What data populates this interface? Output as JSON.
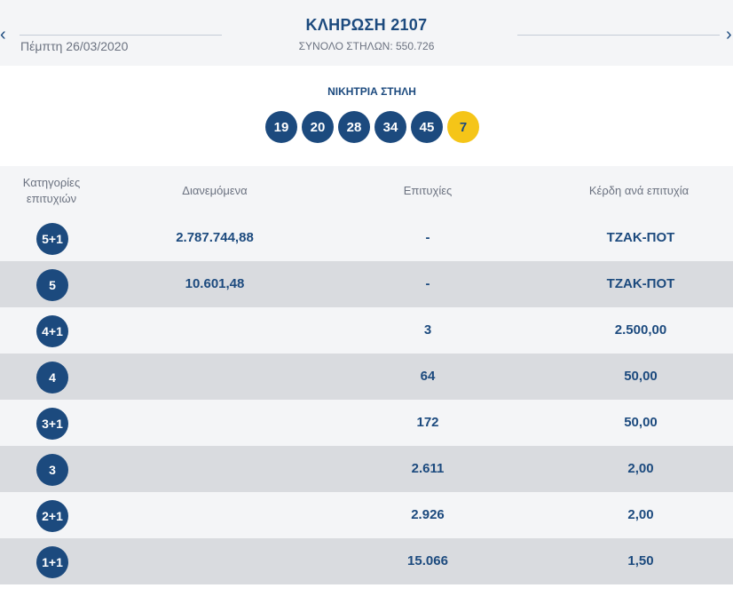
{
  "header": {
    "prev_icon": "‹",
    "next_icon": "›",
    "date": "Πέμπτη 26/03/2020",
    "title": "ΚΛΗΡΩΣΗ 2107",
    "total_columns": "ΣΥΝΟΛΟ ΣΤΗΛΩΝ: 550.726"
  },
  "winning": {
    "label": "ΝΙΚΗΤΡΙΑ ΣΤΗΛΗ",
    "numbers": [
      "19",
      "20",
      "28",
      "34",
      "45"
    ],
    "bonus": "7",
    "colors": {
      "main": "#1c4a7e",
      "bonus": "#f5c518"
    }
  },
  "table": {
    "headers": {
      "category_line1": "Κατηγορίες",
      "category_line2": "επιτυχιών",
      "distributed": "Διανεμόμενα",
      "wins": "Επιτυχίες",
      "prize": "Κέρδη ανά επιτυχία"
    },
    "rows": [
      {
        "category": "5+1",
        "distributed": "2.787.744,88",
        "wins": "-",
        "prize": "ΤΖΑΚ-ΠΟΤ"
      },
      {
        "category": "5",
        "distributed": "10.601,48",
        "wins": "-",
        "prize": "ΤΖΑΚ-ΠΟΤ"
      },
      {
        "category": "4+1",
        "distributed": "",
        "wins": "3",
        "prize": "2.500,00"
      },
      {
        "category": "4",
        "distributed": "",
        "wins": "64",
        "prize": "50,00"
      },
      {
        "category": "3+1",
        "distributed": "",
        "wins": "172",
        "prize": "50,00"
      },
      {
        "category": "3",
        "distributed": "",
        "wins": "2.611",
        "prize": "2,00"
      },
      {
        "category": "2+1",
        "distributed": "",
        "wins": "2.926",
        "prize": "2,00"
      },
      {
        "category": "1+1",
        "distributed": "",
        "wins": "15.066",
        "prize": "1,50"
      }
    ]
  }
}
